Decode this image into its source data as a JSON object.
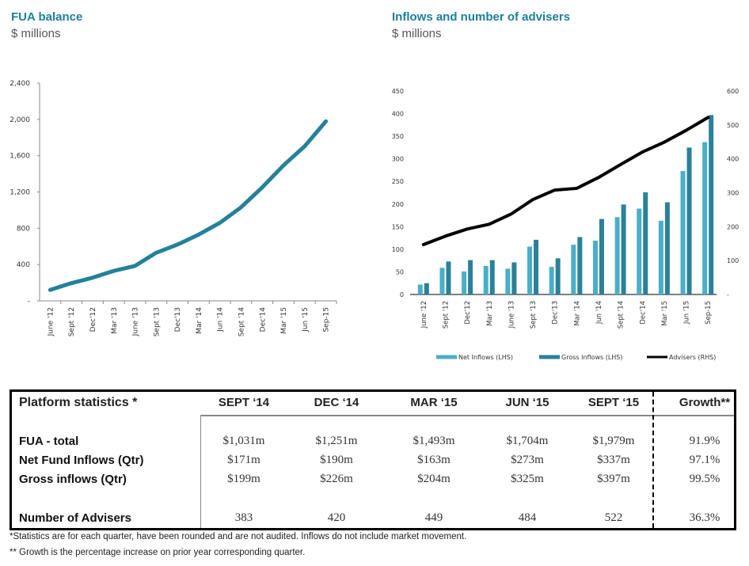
{
  "left_chart": {
    "title": "FUA balance",
    "subtitle": "$ millions"
  },
  "right_chart": {
    "title": "Inflows and number of advisers",
    "subtitle": "$ millions"
  },
  "chart_data": [
    {
      "type": "line",
      "title": "FUA balance",
      "ylabel": "$ millions",
      "xlabel": "",
      "ylim": [
        0,
        2400
      ],
      "yticks": [
        "-",
        "400",
        "800",
        "1,200",
        "1,600",
        "2,000",
        "2,400"
      ],
      "ytick_values": [
        0,
        400,
        800,
        1200,
        1600,
        2000,
        2400
      ],
      "categories": [
        "June '12",
        "Sept '12",
        "Dec'12",
        "Mar '13",
        "June '13",
        "Sept '13",
        "Dec'13",
        "Mar '14",
        "Jun '14",
        "Sept '14",
        "Dec'14",
        "Mar '15",
        "Jun '15",
        "Sep-15"
      ],
      "series": [
        {
          "name": "FUA balance",
          "color": "#23819a",
          "values": [
            120,
            195,
            255,
            330,
            385,
            530,
            620,
            730,
            860,
            1031,
            1251,
            1493,
            1704,
            1979
          ]
        }
      ],
      "grid": false,
      "legend": "none"
    },
    {
      "type": "bar",
      "title": "Inflows and number of advisers",
      "ylabel": "$ millions",
      "xlabel": "",
      "ylim": [
        0,
        450
      ],
      "y2lim": [
        0,
        600
      ],
      "yticks": [
        "0",
        "50",
        "100",
        "150",
        "200",
        "250",
        "300",
        "350",
        "400",
        "450"
      ],
      "ytick_values": [
        0,
        50,
        100,
        150,
        200,
        250,
        300,
        350,
        400,
        450
      ],
      "y2ticks": [
        "-",
        "100",
        "200",
        "300",
        "400",
        "500",
        "600"
      ],
      "y2tick_values": [
        0,
        100,
        200,
        300,
        400,
        500,
        600
      ],
      "categories": [
        "June '12",
        "Sept '12",
        "Dec'12",
        "Mar '13",
        "June '13",
        "Sept '13",
        "Dec'13",
        "Mar '14",
        "Jun '14",
        "Sept '14",
        "Dec'14",
        "Mar '15",
        "Jun '15",
        "Sep-15"
      ],
      "series": [
        {
          "name": "Net Inflows (LHS)",
          "type": "bar",
          "axis": "left",
          "color": "#4aaec8",
          "values": [
            22,
            59,
            51,
            63,
            57,
            106,
            61,
            110,
            119,
            171,
            190,
            163,
            273,
            337
          ]
        },
        {
          "name": "Gross Inflows (LHS)",
          "type": "bar",
          "axis": "left",
          "color": "#2a8199",
          "values": [
            25,
            73,
            76,
            76,
            71,
            121,
            80,
            127,
            167,
            199,
            226,
            204,
            325,
            397
          ]
        },
        {
          "name": "Advisers (RHS)",
          "type": "line",
          "axis": "right",
          "color": "#000000",
          "values": [
            147,
            172,
            193,
            207,
            237,
            280,
            308,
            313,
            345,
            383,
            420,
            449,
            484,
            522
          ]
        }
      ],
      "grid": false,
      "legend": "bottom"
    }
  ],
  "table": {
    "title": "Platform statistics *",
    "columns": [
      "SEPT ‘14",
      "DEC ‘14",
      "MAR ‘15",
      "JUN ‘15",
      "SEPT ‘15",
      "Growth**"
    ],
    "rows": [
      {
        "label": "FUA - total",
        "values": [
          "$1,031m",
          "$1,251m",
          "$1,493m",
          "$1,704m",
          "$1,979m",
          "91.9%"
        ]
      },
      {
        "label": "Net Fund Inflows (Qtr)",
        "values": [
          "$171m",
          "$190m",
          "$163m",
          "$273m",
          "$337m",
          "97.1%"
        ]
      },
      {
        "label": "Gross inflows (Qtr)",
        "values": [
          "$199m",
          "$226m",
          "$204m",
          "$325m",
          "$397m",
          "99.5%"
        ]
      },
      {
        "label": "Number of Advisers",
        "values": [
          "383",
          "420",
          "449",
          "484",
          "522",
          "36.3%"
        ]
      }
    ]
  },
  "footnotes": [
    "*Statistics are for each quarter, have been rounded and are not audited.  Inflows do not include market movement.",
    "** Growth is the percentage increase on prior year corresponding quarter."
  ]
}
